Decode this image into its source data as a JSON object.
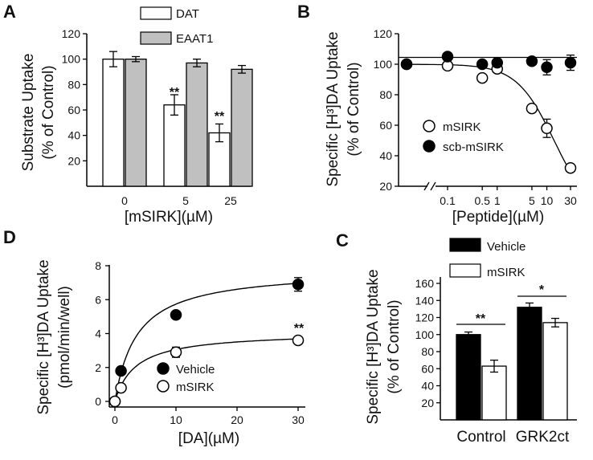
{
  "chart_data": [
    {
      "panel": "A",
      "type": "bar",
      "categories": [
        "0",
        "5",
        "25"
      ],
      "series": [
        {
          "name": "DAT",
          "color": "#ffffff",
          "values": [
            100,
            64,
            42
          ],
          "errors": [
            6,
            8,
            7
          ]
        },
        {
          "name": "EAAT1",
          "color": "#c0c0c0",
          "values": [
            100,
            97,
            92
          ],
          "errors": [
            2,
            3,
            3
          ]
        }
      ],
      "yticks": [
        "20",
        "40",
        "60",
        "80",
        "100",
        "120"
      ],
      "ylim": [
        0,
        120
      ],
      "annotations": [
        "**",
        "**"
      ],
      "xlabel": "[mSIRK](µM)",
      "ylabel": [
        "Substrate Uptake",
        "(% of Control)"
      ]
    },
    {
      "panel": "B",
      "type": "scatter",
      "xscale": "log",
      "xticks": [
        "0.1",
        "0.5",
        "1",
        "5",
        "10",
        "30"
      ],
      "xtick_values": [
        0.1,
        0.5,
        1,
        5,
        10,
        30
      ],
      "series": [
        {
          "name": "mSIRK",
          "marker": "open-circle",
          "x": [
            "control",
            0.1,
            0.5,
            1,
            5,
            10,
            30
          ],
          "y": [
            100,
            99,
            91,
            97,
            71,
            58,
            32
          ],
          "errors": [
            0,
            0,
            2,
            2,
            2,
            6,
            2
          ]
        },
        {
          "name": "scb-mSIRK",
          "marker": "filled-circle",
          "x": [
            "control",
            0.1,
            0.5,
            1,
            5,
            10,
            30
          ],
          "y": [
            100,
            105,
            100,
            101,
            102,
            98,
            101
          ],
          "errors": [
            0,
            0,
            0,
            0,
            1,
            5,
            5
          ]
        }
      ],
      "yticks": [
        "20",
        "40",
        "60",
        "80",
        "100",
        "120"
      ],
      "ylim": [
        20,
        120
      ],
      "xlabel": "[Peptide](µM)",
      "ylabel": [
        "Specific [H³]DA Uptake",
        "(% of Control)"
      ]
    },
    {
      "panel": "D",
      "type": "scatter",
      "series": [
        {
          "name": "Vehicle",
          "marker": "filled-circle",
          "x": [
            0,
            1,
            10,
            30
          ],
          "y": [
            0,
            1.8,
            5.1,
            6.9
          ],
          "errors": [
            0.1,
            0.1,
            0.2,
            0.4
          ]
        },
        {
          "name": "mSIRK",
          "marker": "open-circle",
          "x": [
            0,
            1,
            10,
            30
          ],
          "y": [
            0,
            0.8,
            2.9,
            3.6
          ],
          "errors": [
            0.1,
            0.1,
            0.3,
            0.1
          ]
        }
      ],
      "xticks": [
        "0",
        "10",
        "20",
        "30"
      ],
      "yticks": [
        "0",
        "2",
        "4",
        "6",
        "8"
      ],
      "xlim": [
        0,
        31
      ],
      "ylim": [
        0,
        8
      ],
      "annotations": [
        "**"
      ],
      "xlabel": "[DA](µM)",
      "ylabel": [
        "Specific [H³]DA Uptake",
        "(pmol/min/well)"
      ]
    },
    {
      "panel": "C",
      "type": "bar",
      "categories": [
        "Control",
        "GRK2ct"
      ],
      "series": [
        {
          "name": "Vehicle",
          "color": "#000000",
          "values": [
            100,
            132
          ],
          "errors": [
            3,
            5
          ]
        },
        {
          "name": "mSIRK",
          "color": "#ffffff",
          "values": [
            63,
            114
          ],
          "errors": [
            7,
            5
          ]
        }
      ],
      "yticks": [
        "20",
        "40",
        "60",
        "80",
        "100",
        "120",
        "140",
        "160"
      ],
      "ylim": [
        0,
        160
      ],
      "annotations": [
        "**",
        "*"
      ],
      "ylabel": [
        "Specific [H³]DA Uptake",
        "(% of Control)"
      ]
    }
  ]
}
